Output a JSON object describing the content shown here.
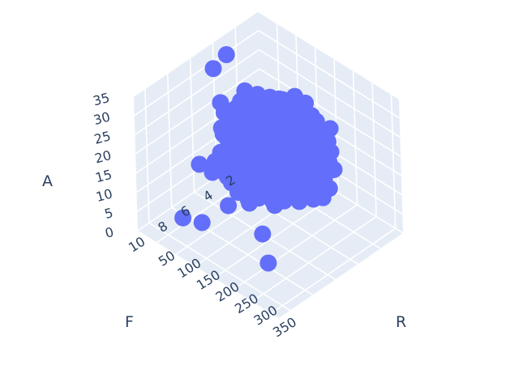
{
  "chart_data": {
    "type": "scatter",
    "mode": "3d",
    "title": "",
    "axes": {
      "x": {
        "label": "R",
        "range": [
          0,
          370
        ],
        "ticks": [
          50,
          100,
          150,
          200,
          250,
          300,
          350
        ],
        "tick_labels": [
          "50",
          "100",
          "150",
          "200",
          "250",
          "300",
          "350"
        ]
      },
      "y": {
        "label": "F",
        "range": [
          0,
          11
        ],
        "ticks": [
          2,
          4,
          6,
          8,
          10
        ],
        "tick_labels": [
          "2",
          "4",
          "6",
          "8",
          "10"
        ]
      },
      "z": {
        "label": "A",
        "range": [
          0,
          35
        ],
        "ticks": [
          0,
          5,
          10,
          15,
          20,
          25,
          30,
          35
        ],
        "tick_labels": [
          "0",
          "5",
          "10",
          "15",
          "20",
          "25",
          "30",
          "35"
        ]
      }
    },
    "marker_color": "#636efa",
    "pane_color": "#e5ecf6",
    "grid": true,
    "legend": "none",
    "point_count": 700,
    "outlier_points": [
      {
        "x": 210,
        "y": 7.0,
        "z": 4.0
      },
      {
        "x": 300,
        "y": 9.5,
        "z": 7.0
      },
      {
        "x": 90,
        "y": 6.0,
        "z": 2.0
      },
      {
        "x": 60,
        "y": 9.0,
        "z": 3.0
      },
      {
        "x": 80,
        "y": 8.0,
        "z": 1.0
      },
      {
        "x": 120,
        "y": 5.0,
        "z": 5.0
      },
      {
        "x": 30,
        "y": 5.0,
        "z": 32.0
      },
      {
        "x": 20,
        "y": 3.5,
        "z": 32.0
      }
    ]
  }
}
